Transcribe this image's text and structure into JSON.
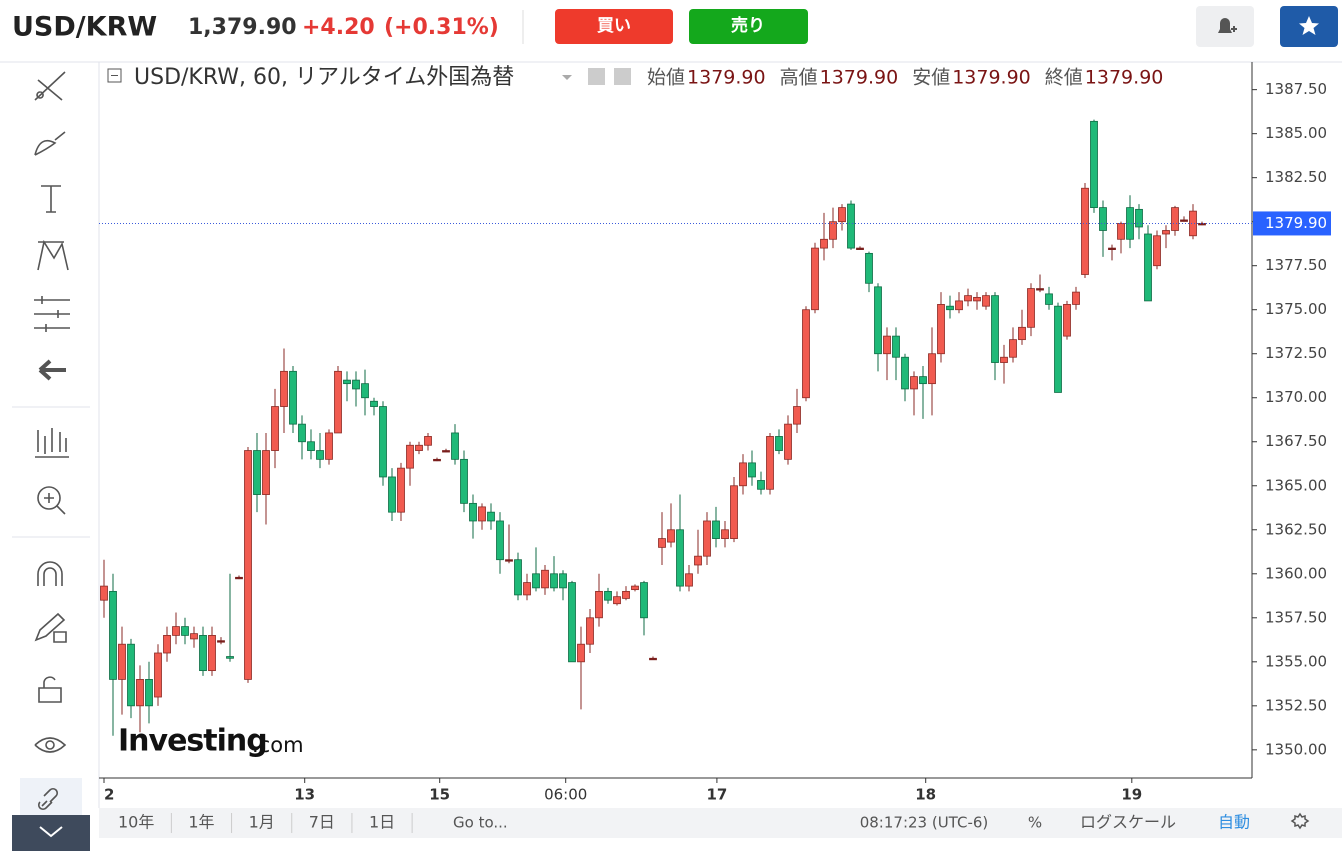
{
  "header": {
    "symbol": "USD/KRW",
    "price": "1,379.90",
    "change": "+4.20",
    "change_pct": "(+0.31%)",
    "buy": "買い",
    "sell": "売り"
  },
  "chart_data": {
    "type": "candlestick",
    "title": "USD/KRW, 60, リアルタイム外国為替",
    "ohlc_legend": [
      {
        "label": "始値",
        "value": "1379.90"
      },
      {
        "label": "高値",
        "value": "1379.90"
      },
      {
        "label": "安値",
        "value": "1379.90"
      },
      {
        "label": "終値",
        "value": "1379.90"
      }
    ],
    "watermark": [
      "Investing",
      ".com"
    ],
    "up_color": "#f15b50",
    "down_color": "#1fb978",
    "flat_color": "#7a1f1c",
    "ylim": [
      1348.4,
      1388.9
    ],
    "yticks": [
      {
        "value": 1350,
        "label": "1350.00"
      },
      {
        "value": 1352.5,
        "label": "1352.50"
      },
      {
        "value": 1355,
        "label": "1355.00"
      },
      {
        "value": 1357.5,
        "label": "1357.50"
      },
      {
        "value": 1360,
        "label": "1360.00"
      },
      {
        "value": 1362.5,
        "label": "1362.50"
      },
      {
        "value": 1365,
        "label": "1365.00"
      },
      {
        "value": 1367.5,
        "label": "1367.50"
      },
      {
        "value": 1370,
        "label": "1370.00"
      },
      {
        "value": 1372.5,
        "label": "1372.50"
      },
      {
        "value": 1375,
        "label": "1375.00"
      },
      {
        "value": 1377.5,
        "label": "1377.50"
      },
      {
        "value": 1380,
        "label": "1380.00"
      },
      {
        "value": 1382.5,
        "label": "1382.50"
      },
      {
        "value": 1385,
        "label": "1385.00"
      },
      {
        "value": 1387.5,
        "label": "1387.50"
      }
    ],
    "xticks": [
      {
        "value": 0,
        "label": "2"
      },
      {
        "value": 22.3,
        "label": "13"
      },
      {
        "value": 37.3,
        "label": "15"
      },
      {
        "value": 51.3,
        "label": "06:00"
      },
      {
        "value": 68.1,
        "label": "17"
      },
      {
        "value": 91.3,
        "label": "18"
      },
      {
        "value": 114.2,
        "label": "19"
      }
    ],
    "last_price": {
      "value": 1379.9,
      "label": "1379.90"
    },
    "candles": [
      [
        1358.5,
        1360.8,
        1357.5,
        1359.3
      ],
      [
        1359.0,
        1360.0,
        1350.8,
        1354.0
      ],
      [
        1354.0,
        1357.0,
        1352.0,
        1356.0
      ],
      [
        1356.0,
        1356.3,
        1351.8,
        1352.5
      ],
      [
        1352.5,
        1354.8,
        1351.0,
        1354.0
      ],
      [
        1354.0,
        1355.0,
        1351.5,
        1352.5
      ],
      [
        1353.0,
        1356.0,
        1352.5,
        1355.5
      ],
      [
        1355.5,
        1357.0,
        1355.0,
        1356.5
      ],
      [
        1356.5,
        1357.8,
        1356.0,
        1357.0
      ],
      [
        1357.0,
        1357.5,
        1356.0,
        1356.5
      ],
      [
        1356.3,
        1357.0,
        1355.8,
        1356.6
      ],
      [
        1356.5,
        1357.0,
        1354.2,
        1354.5
      ],
      [
        1354.5,
        1357.0,
        1354.2,
        1356.5
      ],
      [
        1356.2,
        1356.4,
        1356.0,
        1356.2
      ],
      [
        1355.3,
        1360.0,
        1355.0,
        1355.2
      ],
      [
        1359.8,
        1359.9,
        1359.7,
        1359.8
      ],
      [
        1354.0,
        1367.2,
        1353.8,
        1367.0
      ],
      [
        1367.0,
        1368.0,
        1363.5,
        1364.5
      ],
      [
        1364.5,
        1368.0,
        1362.8,
        1367.0
      ],
      [
        1367.0,
        1370.5,
        1366.0,
        1369.5
      ],
      [
        1369.5,
        1372.8,
        1368.0,
        1371.5
      ],
      [
        1371.5,
        1371.8,
        1368.0,
        1368.5
      ],
      [
        1368.5,
        1369.0,
        1366.5,
        1367.5
      ],
      [
        1367.5,
        1368.2,
        1366.5,
        1367.0
      ],
      [
        1367.0,
        1368.0,
        1366.0,
        1366.5
      ],
      [
        1366.5,
        1368.2,
        1366.2,
        1368.0
      ],
      [
        1368.0,
        1371.8,
        1368.0,
        1371.5
      ],
      [
        1371.0,
        1371.5,
        1369.8,
        1370.8
      ],
      [
        1371.0,
        1371.5,
        1369.5,
        1370.5
      ],
      [
        1370.8,
        1371.6,
        1369.0,
        1370.0
      ],
      [
        1369.8,
        1370.0,
        1369.0,
        1369.5
      ],
      [
        1369.5,
        1369.8,
        1365.0,
        1365.5
      ],
      [
        1365.5,
        1366.0,
        1363.0,
        1363.5
      ],
      [
        1363.5,
        1366.3,
        1363.0,
        1366.0
      ],
      [
        1366.0,
        1367.5,
        1365.0,
        1367.3
      ],
      [
        1367.0,
        1367.5,
        1366.8,
        1367.3
      ],
      [
        1367.3,
        1368.0,
        1367.0,
        1367.8
      ],
      [
        1366.5,
        1366.6,
        1366.4,
        1366.5
      ],
      [
        1367.0,
        1367.1,
        1366.9,
        1367.0
      ],
      [
        1368.0,
        1368.5,
        1366.2,
        1366.5
      ],
      [
        1366.5,
        1367.0,
        1363.5,
        1364.0
      ],
      [
        1364.0,
        1364.5,
        1362.0,
        1363.0
      ],
      [
        1363.0,
        1364.0,
        1362.5,
        1363.8
      ],
      [
        1363.5,
        1364.0,
        1362.5,
        1363.0
      ],
      [
        1363.0,
        1363.5,
        1360.0,
        1360.8
      ],
      [
        1360.8,
        1362.8,
        1360.6,
        1360.8
      ],
      [
        1360.8,
        1361.2,
        1358.5,
        1358.8
      ],
      [
        1358.8,
        1360.0,
        1358.5,
        1359.5
      ],
      [
        1360.0,
        1361.5,
        1359.0,
        1359.2
      ],
      [
        1359.2,
        1360.5,
        1358.8,
        1360.2
      ],
      [
        1360.0,
        1361.0,
        1359.0,
        1359.2
      ],
      [
        1360.0,
        1360.2,
        1358.5,
        1359.2
      ],
      [
        1359.5,
        1359.6,
        1355.0,
        1355.0
      ],
      [
        1355.0,
        1357.0,
        1352.3,
        1356.0
      ],
      [
        1356.0,
        1358.0,
        1355.5,
        1357.5
      ],
      [
        1357.5,
        1360.0,
        1357.0,
        1359.0
      ],
      [
        1359.0,
        1359.2,
        1358.3,
        1358.5
      ],
      [
        1358.3,
        1359.0,
        1358.2,
        1358.7
      ],
      [
        1358.6,
        1359.3,
        1358.5,
        1359.0
      ],
      [
        1359.1,
        1359.4,
        1359.0,
        1359.3
      ],
      [
        1359.5,
        1359.6,
        1356.5,
        1357.5
      ],
      [
        1355.2,
        1355.3,
        1355.1,
        1355.2
      ],
      [
        1361.5,
        1363.5,
        1360.5,
        1362.0
      ],
      [
        1361.8,
        1364.0,
        1361.5,
        1362.5
      ],
      [
        1362.5,
        1364.5,
        1359.0,
        1359.3
      ],
      [
        1359.3,
        1360.5,
        1359.0,
        1360.0
      ],
      [
        1360.5,
        1362.5,
        1360.0,
        1361.0
      ],
      [
        1361.0,
        1363.5,
        1360.5,
        1363.0
      ],
      [
        1363.0,
        1363.8,
        1361.5,
        1362.0
      ],
      [
        1362.0,
        1363.0,
        1361.5,
        1362.5
      ],
      [
        1362.0,
        1365.5,
        1361.8,
        1365.0
      ],
      [
        1365.0,
        1366.8,
        1364.5,
        1366.3
      ],
      [
        1366.3,
        1367.0,
        1365.0,
        1365.5
      ],
      [
        1365.3,
        1365.8,
        1364.5,
        1364.8
      ],
      [
        1364.8,
        1368.0,
        1364.5,
        1367.8
      ],
      [
        1367.8,
        1368.2,
        1366.8,
        1367.0
      ],
      [
        1366.5,
        1369.0,
        1366.2,
        1368.5
      ],
      [
        1368.5,
        1370.5,
        1368.0,
        1369.5
      ],
      [
        1370.0,
        1375.2,
        1369.8,
        1375.0
      ],
      [
        1375.0,
        1378.8,
        1374.8,
        1378.5
      ],
      [
        1378.5,
        1380.5,
        1377.8,
        1379.0
      ],
      [
        1379.0,
        1380.8,
        1378.5,
        1380.0
      ],
      [
        1380.0,
        1381.0,
        1379.5,
        1380.8
      ],
      [
        1381.0,
        1381.2,
        1378.4,
        1378.5
      ],
      [
        1378.5,
        1378.6,
        1378.4,
        1378.5
      ],
      [
        1378.2,
        1378.3,
        1376.0,
        1376.5
      ],
      [
        1376.3,
        1376.5,
        1371.5,
        1372.5
      ],
      [
        1372.5,
        1374.0,
        1371.0,
        1373.5
      ],
      [
        1373.5,
        1374.0,
        1371.0,
        1372.3
      ],
      [
        1372.3,
        1372.5,
        1369.8,
        1370.5
      ],
      [
        1370.5,
        1371.5,
        1369.0,
        1371.2
      ],
      [
        1371.2,
        1371.8,
        1368.8,
        1370.8
      ],
      [
        1370.8,
        1374.0,
        1369.0,
        1372.5
      ],
      [
        1372.5,
        1376.0,
        1372.0,
        1375.3
      ],
      [
        1375.2,
        1375.8,
        1374.5,
        1375.0
      ],
      [
        1375.0,
        1376.0,
        1374.8,
        1375.5
      ],
      [
        1375.5,
        1376.2,
        1375.2,
        1375.8
      ],
      [
        1375.5,
        1376.0,
        1375.0,
        1375.7
      ],
      [
        1375.2,
        1376.0,
        1375.0,
        1375.8
      ],
      [
        1375.8,
        1376.0,
        1371.0,
        1372.0
      ],
      [
        1372.0,
        1373.0,
        1370.8,
        1372.3
      ],
      [
        1372.3,
        1374.0,
        1372.0,
        1373.3
      ],
      [
        1373.3,
        1375.0,
        1373.0,
        1374.0
      ],
      [
        1374.0,
        1376.5,
        1373.5,
        1376.2
      ],
      [
        1376.2,
        1377.0,
        1376.0,
        1376.2
      ],
      [
        1375.9,
        1376.3,
        1375.0,
        1375.3
      ],
      [
        1375.2,
        1375.4,
        1370.3,
        1370.3
      ],
      [
        1373.5,
        1375.5,
        1373.3,
        1375.3
      ],
      [
        1375.3,
        1376.3,
        1375.0,
        1376.0
      ],
      [
        1377.0,
        1382.2,
        1376.8,
        1381.9
      ],
      [
        1385.7,
        1385.8,
        1380.5,
        1380.8
      ],
      [
        1380.8,
        1381.2,
        1378.0,
        1379.5
      ],
      [
        1378.5,
        1378.7,
        1377.8,
        1378.5
      ],
      [
        1379.0,
        1380.0,
        1378.2,
        1379.9
      ],
      [
        1380.8,
        1381.5,
        1378.5,
        1379.0
      ],
      [
        1380.7,
        1381.0,
        1379.0,
        1379.7
      ],
      [
        1379.3,
        1379.8,
        1375.5,
        1375.5
      ],
      [
        1377.5,
        1379.5,
        1377.3,
        1379.2
      ],
      [
        1379.3,
        1379.8,
        1378.5,
        1379.5
      ],
      [
        1379.5,
        1380.9,
        1379.2,
        1380.8
      ],
      [
        1380.1,
        1380.3,
        1380.0,
        1380.1
      ],
      [
        1379.2,
        1381.0,
        1379.0,
        1380.6
      ],
      [
        1379.9,
        1380.0,
        1379.8,
        1379.9
      ]
    ]
  },
  "toolbar": {
    "ranges": [
      "10年",
      "1年",
      "1月",
      "7日",
      "1日"
    ],
    "goto": "Go to...",
    "clock": "08:17:23 (UTC-6)",
    "percent": "%",
    "log": "ログスケール",
    "auto": "自動"
  }
}
